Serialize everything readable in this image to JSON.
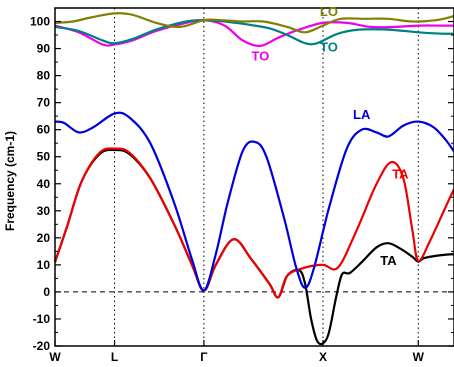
{
  "chart_data": {
    "type": "line",
    "title": "",
    "xlabel": "",
    "ylabel": "Frequency (cm-1)",
    "ylim": [
      -20,
      105
    ],
    "xlim": [
      0,
      6.7
    ],
    "y_ticks": [
      -20,
      -10,
      0,
      10,
      20,
      30,
      40,
      50,
      60,
      70,
      80,
      90,
      100
    ],
    "y_minor_ticks": [
      -15,
      -5,
      5,
      15,
      25,
      35,
      45,
      55,
      65,
      75,
      85,
      95
    ],
    "x_ticks": [
      {
        "label": "W",
        "x": 0
      },
      {
        "label": "L",
        "x": 1
      },
      {
        "label": "Γ",
        "x": 2.5
      },
      {
        "label": "X",
        "x": 4.5
      },
      {
        "label": "W",
        "x": 6.1
      }
    ],
    "vertical_lines": [
      1,
      2.5,
      4.5,
      6.1
    ],
    "zero_line": 0,
    "grid": false,
    "legend": "none",
    "series": [
      {
        "name": "TA",
        "color": "#000000",
        "points": [
          [
            0,
            11
          ],
          [
            0.2,
            24
          ],
          [
            0.45,
            41
          ],
          [
            0.75,
            51
          ],
          [
            1,
            52.5
          ],
          [
            1.25,
            51
          ],
          [
            1.6,
            42
          ],
          [
            2,
            25
          ],
          [
            2.3,
            10
          ],
          [
            2.5,
            0.5
          ],
          [
            2.7,
            10
          ],
          [
            3.0,
            19.5
          ],
          [
            3.3,
            12
          ],
          [
            3.6,
            3
          ],
          [
            3.75,
            -2
          ],
          [
            3.9,
            6
          ],
          [
            4.1,
            8
          ],
          [
            4.2,
            3
          ],
          [
            4.3,
            -10
          ],
          [
            4.4,
            -18
          ],
          [
            4.5,
            -19
          ],
          [
            4.6,
            -15
          ],
          [
            4.72,
            -2
          ],
          [
            4.82,
            6.5
          ],
          [
            4.95,
            7
          ],
          [
            5.15,
            11
          ],
          [
            5.4,
            16.5
          ],
          [
            5.6,
            18
          ],
          [
            5.8,
            16
          ],
          [
            6.0,
            13
          ],
          [
            6.1,
            11.2
          ],
          [
            6.2,
            12.5
          ],
          [
            6.45,
            13.5
          ],
          [
            6.7,
            14
          ]
        ]
      },
      {
        "name": "TA",
        "color": "#ee0000",
        "points": [
          [
            0,
            11
          ],
          [
            0.2,
            24
          ],
          [
            0.45,
            41
          ],
          [
            0.75,
            51.5
          ],
          [
            1,
            53
          ],
          [
            1.25,
            51.5
          ],
          [
            1.6,
            42
          ],
          [
            2,
            25
          ],
          [
            2.3,
            10
          ],
          [
            2.5,
            0.5
          ],
          [
            2.7,
            10
          ],
          [
            3.0,
            19.5
          ],
          [
            3.3,
            12
          ],
          [
            3.6,
            3
          ],
          [
            3.75,
            -2
          ],
          [
            3.9,
            6
          ],
          [
            4.2,
            9
          ],
          [
            4.5,
            10
          ],
          [
            4.75,
            9
          ],
          [
            5.05,
            22
          ],
          [
            5.4,
            40
          ],
          [
            5.65,
            48
          ],
          [
            5.85,
            42
          ],
          [
            6.0,
            23
          ],
          [
            6.1,
            11.5
          ],
          [
            6.3,
            19
          ],
          [
            6.55,
            31
          ],
          [
            6.7,
            38
          ]
        ]
      },
      {
        "name": "LA",
        "color": "#0000dd",
        "points": [
          [
            0,
            63
          ],
          [
            0.15,
            62.5
          ],
          [
            0.4,
            59
          ],
          [
            0.65,
            61
          ],
          [
            1,
            66
          ],
          [
            1.25,
            64.5
          ],
          [
            1.6,
            55
          ],
          [
            2,
            33
          ],
          [
            2.3,
            12
          ],
          [
            2.5,
            0.5
          ],
          [
            2.7,
            14
          ],
          [
            2.9,
            33
          ],
          [
            3.15,
            52
          ],
          [
            3.35,
            55.5
          ],
          [
            3.55,
            50
          ],
          [
            3.85,
            27
          ],
          [
            4.05,
            9
          ],
          [
            4.2,
            1.5
          ],
          [
            4.35,
            9
          ],
          [
            4.6,
            31
          ],
          [
            4.9,
            53
          ],
          [
            5.15,
            60
          ],
          [
            5.4,
            59
          ],
          [
            5.6,
            57.5
          ],
          [
            5.85,
            61.5
          ],
          [
            6.1,
            63
          ],
          [
            6.35,
            61
          ],
          [
            6.55,
            56.5
          ],
          [
            6.7,
            52
          ]
        ]
      },
      {
        "name": "TO",
        "color": "#ee00ee",
        "points": [
          [
            0,
            98.5
          ],
          [
            0.4,
            96
          ],
          [
            0.8,
            91.5
          ],
          [
            1,
            91.5
          ],
          [
            1.3,
            93
          ],
          [
            1.7,
            96.5
          ],
          [
            2.2,
            99.5
          ],
          [
            2.5,
            100.5
          ],
          [
            2.85,
            98.5
          ],
          [
            3.15,
            93
          ],
          [
            3.45,
            91
          ],
          [
            3.75,
            94
          ],
          [
            4.1,
            97
          ],
          [
            4.5,
            99.5
          ],
          [
            4.9,
            99.5
          ],
          [
            5.3,
            98
          ],
          [
            5.7,
            98
          ],
          [
            6.1,
            98.5
          ],
          [
            6.5,
            98.5
          ],
          [
            6.7,
            98.5
          ]
        ]
      },
      {
        "name": "TO",
        "color": "#008080",
        "points": [
          [
            0,
            98
          ],
          [
            0.4,
            96.5
          ],
          [
            0.8,
            93
          ],
          [
            1,
            92
          ],
          [
            1.3,
            93.5
          ],
          [
            1.7,
            97
          ],
          [
            2.2,
            100
          ],
          [
            2.5,
            100.5
          ],
          [
            2.85,
            100
          ],
          [
            3.2,
            99
          ],
          [
            3.6,
            97.5
          ],
          [
            3.9,
            95
          ],
          [
            4.2,
            92
          ],
          [
            4.4,
            92
          ],
          [
            4.75,
            95.5
          ],
          [
            5.1,
            97
          ],
          [
            5.6,
            97
          ],
          [
            6.1,
            96
          ],
          [
            6.5,
            95.5
          ],
          [
            6.7,
            95.5
          ]
        ]
      },
      {
        "name": "LO",
        "color": "#808000",
        "points": [
          [
            0,
            99.5
          ],
          [
            0.3,
            100
          ],
          [
            0.6,
            101.5
          ],
          [
            1,
            103
          ],
          [
            1.3,
            102.5
          ],
          [
            1.7,
            99.5
          ],
          [
            2.1,
            98
          ],
          [
            2.5,
            100.5
          ],
          [
            2.8,
            100.5
          ],
          [
            3.15,
            100
          ],
          [
            3.5,
            100
          ],
          [
            3.9,
            98
          ],
          [
            4.2,
            96
          ],
          [
            4.5,
            98.5
          ],
          [
            4.8,
            101
          ],
          [
            5.2,
            101
          ],
          [
            5.6,
            101
          ],
          [
            6.0,
            100
          ],
          [
            6.4,
            100.5
          ],
          [
            6.7,
            102
          ]
        ]
      }
    ],
    "annotations": [
      {
        "text": "LO",
        "color": "#808000",
        "x": 4.6,
        "y": 102
      },
      {
        "text": "TO",
        "color": "#008080",
        "x": 4.6,
        "y": 89
      },
      {
        "text": "TO",
        "color": "#ee00ee",
        "x": 3.45,
        "y": 85.5
      },
      {
        "text": "LA",
        "color": "#0000dd",
        "x": 5.15,
        "y": 64
      },
      {
        "text": "TA",
        "color": "#ee0000",
        "x": 5.8,
        "y": 42
      },
      {
        "text": "TA",
        "color": "#000000",
        "x": 5.6,
        "y": 10
      }
    ]
  }
}
